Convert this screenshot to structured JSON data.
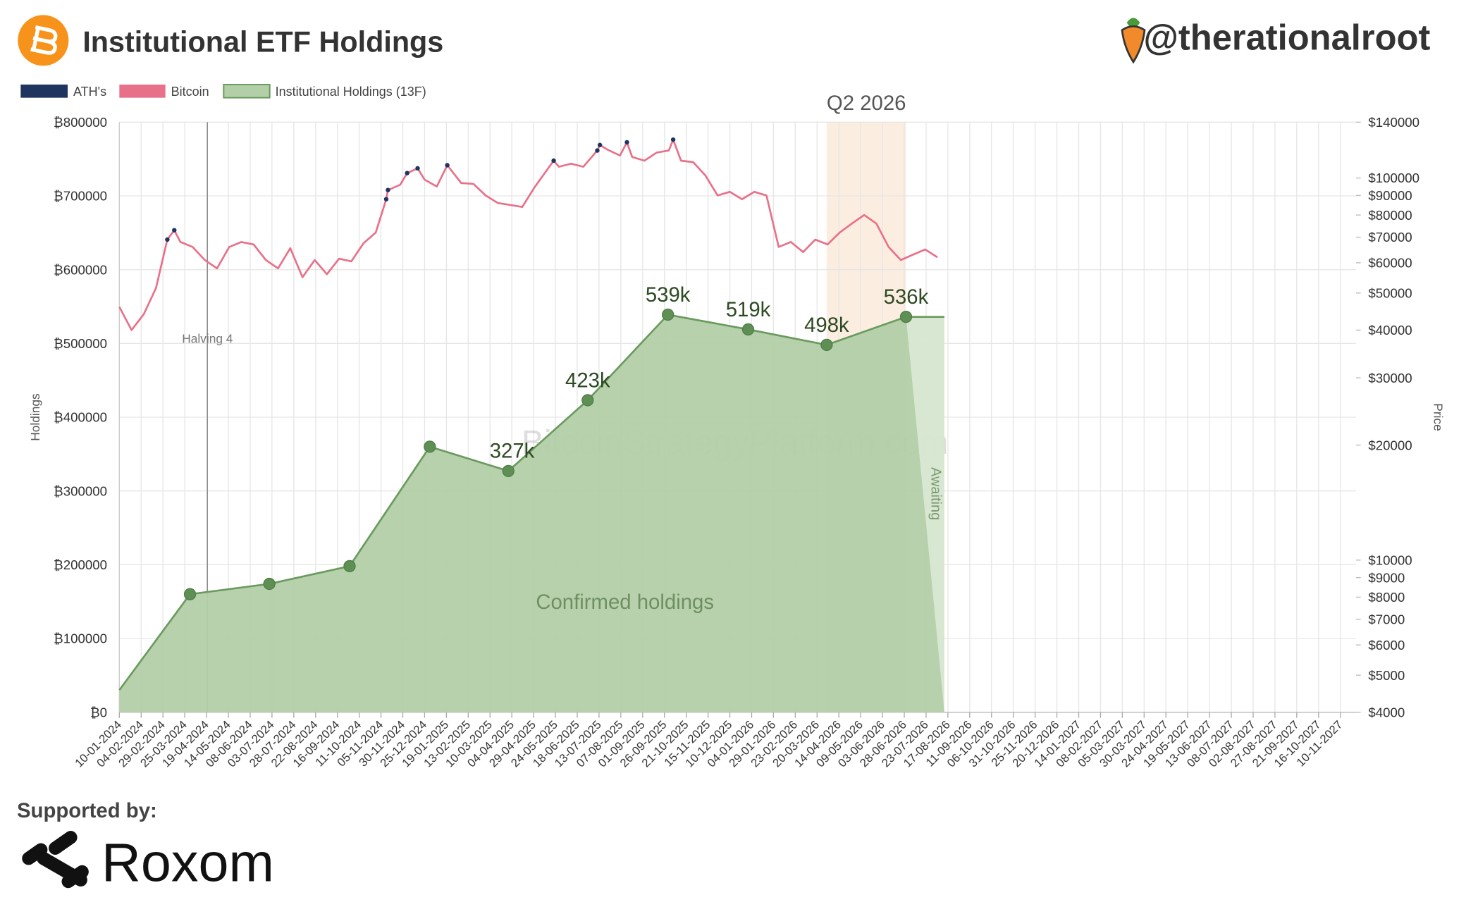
{
  "chart_data": {
    "type": "combo",
    "title": "Institutional ETF Holdings",
    "handle": "@therationalroot",
    "watermark": "BitcoinStrategyPlatform.com",
    "ylabel": "Holdings",
    "y2label": "Price",
    "grid": true,
    "y2log": true,
    "xlim": [
      "10-01-2024",
      "28-11-2027"
    ],
    "xticks": [
      "10-01-2024",
      "04-02-2024",
      "29-02-2024",
      "25-03-2024",
      "19-04-2024",
      "14-05-2024",
      "08-06-2024",
      "03-07-2024",
      "28-07-2024",
      "22-08-2024",
      "16-09-2024",
      "11-10-2024",
      "05-11-2024",
      "30-11-2024",
      "25-12-2024",
      "19-01-2025",
      "13-02-2025",
      "10-03-2025",
      "04-04-2025",
      "29-04-2025",
      "24-05-2025",
      "18-06-2025",
      "13-07-2025",
      "07-08-2025",
      "01-09-2025",
      "26-09-2025",
      "21-10-2025",
      "15-11-2025",
      "10-12-2025",
      "04-01-2026",
      "29-01-2026",
      "23-02-2026",
      "20-03-2026",
      "14-04-2026",
      "09-05-2026",
      "03-06-2026",
      "28-06-2026",
      "23-07-2026",
      "17-08-2026",
      "11-09-2026",
      "06-10-2026",
      "31-10-2026",
      "25-11-2026",
      "20-12-2026",
      "14-01-2027",
      "08-02-2027",
      "05-03-2027",
      "30-03-2027",
      "24-04-2027",
      "19-05-2027",
      "13-06-2027",
      "08-07-2027",
      "02-08-2027",
      "27-08-2027",
      "21-09-2027",
      "16-10-2027",
      "10-11-2027"
    ],
    "ylim": [
      0,
      800000
    ],
    "yticks": [
      {
        "value": 0,
        "label": "₿0"
      },
      {
        "value": 100000,
        "label": "₿100000"
      },
      {
        "value": 200000,
        "label": "₿200000"
      },
      {
        "value": 300000,
        "label": "₿300000"
      },
      {
        "value": 400000,
        "label": "₿400000"
      },
      {
        "value": 500000,
        "label": "₿500000"
      },
      {
        "value": 600000,
        "label": "₿600000"
      },
      {
        "value": 700000,
        "label": "₿700000"
      },
      {
        "value": 800000,
        "label": "₿800000"
      }
    ],
    "y2lim": [
      4000,
      140000
    ],
    "y2ticks": [
      {
        "value": 4000,
        "label": "$4000"
      },
      {
        "value": 5000,
        "label": "$5000"
      },
      {
        "value": 6000,
        "label": "$6000"
      },
      {
        "value": 7000,
        "label": "$7000"
      },
      {
        "value": 8000,
        "label": "$8000"
      },
      {
        "value": 9000,
        "label": "$9000"
      },
      {
        "value": 10000,
        "label": "$10000"
      },
      {
        "value": 20000,
        "label": "$20000"
      },
      {
        "value": 30000,
        "label": "$30000"
      },
      {
        "value": 40000,
        "label": "$40000"
      },
      {
        "value": 50000,
        "label": "$50000"
      },
      {
        "value": 60000,
        "label": "$60000"
      },
      {
        "value": 70000,
        "label": "$70000"
      },
      {
        "value": 80000,
        "label": "$80000"
      },
      {
        "value": 90000,
        "label": "$90000"
      },
      {
        "value": 100000,
        "label": "$100000"
      },
      {
        "value": 140000,
        "label": "$140000"
      }
    ],
    "series": [
      {
        "name": "ATH's",
        "type": "scatter",
        "axis": "y2",
        "color": "#1f3560",
        "x": [
          "05-03-2024",
          "13-03-2024",
          "11-11-2024",
          "13-11-2024",
          "05-12-2024",
          "17-12-2024",
          "20-01-2025",
          "22-05-2025",
          "11-07-2025",
          "14-07-2025",
          "14-08-2025",
          "06-10-2025"
        ],
        "values": [
          69000,
          73000,
          88000,
          93000,
          103000,
          106000,
          108000,
          111000,
          118000,
          122000,
          124000,
          126000
        ]
      },
      {
        "name": "Bitcoin",
        "type": "line",
        "axis": "y2",
        "color": "#e8718a",
        "x": [
          "10-01-2024",
          "24-01-2024",
          "07-02-2024",
          "21-02-2024",
          "05-03-2024",
          "13-03-2024",
          "20-03-2024",
          "03-04-2024",
          "17-04-2024",
          "01-05-2024",
          "15-05-2024",
          "29-05-2024",
          "12-06-2024",
          "26-06-2024",
          "10-07-2024",
          "24-07-2024",
          "07-08-2024",
          "21-08-2024",
          "04-09-2024",
          "18-09-2024",
          "02-10-2024",
          "16-10-2024",
          "30-10-2024",
          "11-11-2024",
          "13-11-2024",
          "27-11-2024",
          "05-12-2024",
          "17-12-2024",
          "25-12-2024",
          "08-01-2025",
          "20-01-2025",
          "05-02-2025",
          "19-02-2025",
          "05-03-2025",
          "19-03-2025",
          "02-04-2025",
          "16-04-2025",
          "30-04-2025",
          "22-05-2025",
          "28-05-2025",
          "11-06-2025",
          "25-06-2025",
          "11-07-2025",
          "14-07-2025",
          "23-07-2025",
          "06-08-2025",
          "14-08-2025",
          "20-08-2025",
          "03-09-2025",
          "17-09-2025",
          "01-10-2025",
          "06-10-2025",
          "15-10-2025",
          "29-10-2025",
          "12-11-2025",
          "26-11-2025",
          "10-12-2025",
          "24-12-2025",
          "07-01-2026",
          "21-01-2026",
          "04-02-2026",
          "18-02-2026",
          "04-03-2026",
          "18-03-2026",
          "01-04-2026",
          "15-04-2026",
          "29-04-2026",
          "13-05-2026",
          "27-05-2026",
          "10-06-2026",
          "24-06-2026",
          "08-07-2026",
          "22-07-2026",
          "05-08-2026"
        ],
        "values": [
          46000,
          40000,
          44000,
          51500,
          69000,
          73000,
          68000,
          66000,
          61000,
          58000,
          66000,
          68000,
          67000,
          61000,
          58000,
          65500,
          55000,
          61000,
          56000,
          61500,
          60500,
          67500,
          72000,
          88000,
          93000,
          96000,
          103000,
          106000,
          99000,
          95000,
          108000,
          97000,
          96500,
          90000,
          86000,
          85000,
          84000,
          94500,
          111000,
          107000,
          109000,
          107000,
          118000,
          122000,
          118500,
          114500,
          124000,
          113500,
          111000,
          116500,
          118000,
          126000,
          111000,
          110000,
          101500,
          90000,
          92000,
          88000,
          92000,
          90000,
          66000,
          68000,
          64000,
          69000,
          67000,
          72000,
          76000,
          80000,
          76000,
          66000,
          61000,
          63000,
          65000,
          62000
        ]
      },
      {
        "name": "Institutional Holdings (13F)",
        "type": "area",
        "axis": "y",
        "color": "#7fb06f",
        "x": [
          "10-01-2024",
          "31-03-2024",
          "30-06-2024",
          "30-09-2024",
          "31-12-2024",
          "31-03-2025",
          "30-06-2025",
          "30-09-2025",
          "31-12-2025",
          "31-03-2026",
          "30-06-2026",
          "13-08-2026"
        ],
        "values": [
          30000,
          160000,
          174000,
          198000,
          360000,
          327000,
          423000,
          539000,
          519000,
          498000,
          536000,
          536000
        ],
        "value_labels": [
          null,
          null,
          null,
          null,
          null,
          "327k",
          "423k",
          "539k",
          "519k",
          "498k",
          "536k",
          null
        ]
      }
    ],
    "annotations": {
      "halving": {
        "text": "Halving 4",
        "x": "20-04-2024"
      },
      "quarter": {
        "text": "Q2 2026",
        "x": [
          "31-03-2026",
          "30-06-2026"
        ]
      },
      "awaiting": {
        "text": "Awaiting"
      },
      "confirmed": {
        "text": "Confirmed holdings"
      }
    }
  },
  "footer": {
    "supported_by": "Supported by:",
    "sponsor": "Roxom"
  }
}
